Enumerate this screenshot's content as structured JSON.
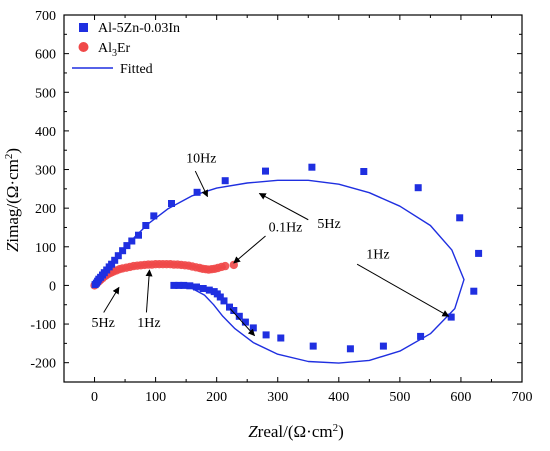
{
  "chart_data": {
    "type": "scatter",
    "title": "",
    "xlabel": "Zreal/(Ω·cm²)",
    "ylabel": "Zimag/(Ω·cm²)",
    "xlim": [
      -50,
      700
    ],
    "ylim": [
      -250,
      700
    ],
    "xticks": [
      0,
      100,
      200,
      300,
      400,
      500,
      600,
      700
    ],
    "yticks": [
      -200,
      -100,
      0,
      100,
      200,
      300,
      400,
      500,
      600,
      700
    ],
    "grid": false,
    "legend_position": "top-left",
    "legend": [
      {
        "label": "Al-5Zn-0.03In",
        "marker": "square",
        "color": "#1f2fe0"
      },
      {
        "label": "Al3Er",
        "base": "Al",
        "sub": "3",
        "rest": "Er",
        "marker": "circle",
        "color": "#f04848"
      },
      {
        "label": "Fitted",
        "marker": "line",
        "color": "#1f2fe0"
      }
    ],
    "series": [
      {
        "name": "Al-5Zn-0.03In",
        "marker": "square",
        "color": "#1f2fe0",
        "points": [
          [
            1,
            2
          ],
          [
            3,
            6
          ],
          [
            5,
            11
          ],
          [
            7,
            16
          ],
          [
            10,
            21
          ],
          [
            13,
            27
          ],
          [
            16,
            33
          ],
          [
            20,
            40
          ],
          [
            24,
            48
          ],
          [
            28,
            55
          ],
          [
            33,
            65
          ],
          [
            39,
            77
          ],
          [
            46,
            90
          ],
          [
            53,
            103
          ],
          [
            61,
            115
          ],
          [
            72,
            130
          ],
          [
            84,
            155
          ],
          [
            97,
            180
          ],
          [
            126,
            212
          ],
          [
            168,
            241
          ],
          [
            214,
            271
          ],
          [
            280,
            296
          ],
          [
            356,
            306
          ],
          [
            441,
            295
          ],
          [
            530,
            253
          ],
          [
            598,
            175
          ],
          [
            629,
            83
          ],
          [
            621,
            -15
          ],
          [
            584,
            -82
          ],
          [
            534,
            -132
          ],
          [
            473,
            -157
          ],
          [
            419,
            -164
          ],
          [
            358,
            -157
          ],
          [
            305,
            -136
          ],
          [
            281,
            -128
          ],
          [
            260,
            -110
          ],
          [
            247,
            -95
          ],
          [
            237,
            -80
          ],
          [
            228,
            -65
          ],
          [
            221,
            -56
          ],
          [
            212,
            -40
          ],
          [
            206,
            -30
          ],
          [
            201,
            -22
          ],
          [
            196,
            -16
          ],
          [
            188,
            -12
          ],
          [
            178,
            -8
          ],
          [
            167,
            -4
          ],
          [
            156,
            -1
          ],
          [
            146,
            0
          ],
          [
            138,
            0
          ],
          [
            130,
            0
          ]
        ]
      },
      {
        "name": "Al3Er",
        "marker": "circle",
        "color": "#f04848",
        "points": [
          [
            0,
            0
          ],
          [
            2,
            3
          ],
          [
            4,
            6
          ],
          [
            6,
            9
          ],
          [
            8,
            12
          ],
          [
            10,
            15
          ],
          [
            13,
            19
          ],
          [
            16,
            23
          ],
          [
            19,
            26
          ],
          [
            23,
            30
          ],
          [
            27,
            33
          ],
          [
            31,
            36
          ],
          [
            36,
            39
          ],
          [
            41,
            42
          ],
          [
            46,
            44
          ],
          [
            52,
            46
          ],
          [
            58,
            48
          ],
          [
            64,
            50
          ],
          [
            70,
            51
          ],
          [
            76,
            52
          ],
          [
            82,
            53
          ],
          [
            88,
            54
          ],
          [
            94,
            54
          ],
          [
            100,
            55
          ],
          [
            106,
            55
          ],
          [
            112,
            55
          ],
          [
            118,
            55
          ],
          [
            124,
            55
          ],
          [
            130,
            54
          ],
          [
            136,
            54
          ],
          [
            142,
            53
          ],
          [
            148,
            52
          ],
          [
            154,
            51
          ],
          [
            160,
            49
          ],
          [
            166,
            47
          ],
          [
            172,
            45
          ],
          [
            177,
            43
          ],
          [
            182,
            42
          ],
          [
            187,
            41
          ],
          [
            192,
            42
          ],
          [
            197,
            43
          ],
          [
            202,
            45
          ],
          [
            208,
            48
          ],
          [
            214,
            50
          ],
          [
            228,
            53
          ]
        ]
      }
    ],
    "fitted": [
      {
        "name": "Fitted",
        "color": "#1f2fe0",
        "points": [
          [
            0,
            0
          ],
          [
            10,
            22
          ],
          [
            20,
            42
          ],
          [
            35,
            72
          ],
          [
            50,
            100
          ],
          [
            70,
            132
          ],
          [
            90,
            162
          ],
          [
            120,
            198
          ],
          [
            160,
            232
          ],
          [
            200,
            252
          ],
          [
            250,
            265
          ],
          [
            300,
            272
          ],
          [
            350,
            272
          ],
          [
            400,
            262
          ],
          [
            450,
            240
          ],
          [
            500,
            205
          ],
          [
            550,
            155
          ],
          [
            585,
            92
          ],
          [
            605,
            15
          ],
          [
            590,
            -60
          ],
          [
            550,
            -125
          ],
          [
            500,
            -170
          ],
          [
            450,
            -194
          ],
          [
            400,
            -201
          ],
          [
            350,
            -197
          ],
          [
            300,
            -178
          ],
          [
            260,
            -148
          ],
          [
            230,
            -112
          ],
          [
            210,
            -80
          ],
          [
            195,
            -50
          ],
          [
            180,
            -25
          ],
          [
            160,
            -8
          ],
          [
            140,
            -1
          ],
          [
            125,
            0
          ]
        ]
      },
      {
        "name": "Fitted",
        "color": "#1f2fe0",
        "points": [
          [
            0,
            0
          ],
          [
            10,
            15
          ],
          [
            25,
            28
          ],
          [
            45,
            40
          ],
          [
            70,
            50
          ],
          [
            100,
            55
          ],
          [
            130,
            55
          ],
          [
            160,
            50
          ],
          [
            180,
            43
          ],
          [
            190,
            41
          ],
          [
            200,
            44
          ],
          [
            215,
            48
          ]
        ]
      }
    ],
    "annotations": [
      {
        "text": "10Hz",
        "label_at": [
          150,
          318
        ],
        "arrow_from": [
          165,
          296
        ],
        "arrow_to": [
          185,
          230
        ]
      },
      {
        "text": "5Hz",
        "label_at": [
          365,
          148
        ],
        "arrow_from": [
          350,
          170
        ],
        "arrow_to": [
          270,
          238
        ]
      },
      {
        "text": "0.1Hz",
        "label_at": [
          285,
          140
        ],
        "arrow_from": [
          280,
          128
        ],
        "arrow_to": [
          228,
          58
        ]
      },
      {
        "text": "1Hz",
        "label_at": [
          445,
          70
        ],
        "arrow_from": [
          430,
          55
        ],
        "arrow_to": [
          580,
          -80
        ]
      },
      {
        "text": "5Hz",
        "label_at": [
          -5,
          -108
        ],
        "arrow_from": [
          15,
          -70
        ],
        "arrow_to": [
          40,
          -5
        ]
      },
      {
        "text": "1Hz",
        "label_at": [
          70,
          -108
        ],
        "arrow_from": [
          85,
          -70
        ],
        "arrow_to": [
          90,
          40
        ]
      },
      {
        "text": "",
        "label_at": null,
        "arrow_from": [
          222,
          -60
        ],
        "arrow_to": [
          262,
          -130
        ]
      }
    ]
  }
}
